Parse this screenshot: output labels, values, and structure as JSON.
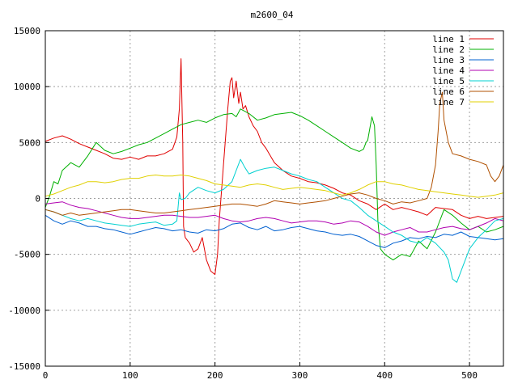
{
  "chart_data": {
    "type": "line",
    "title": "m2600_04",
    "xlabel": "",
    "ylabel": "",
    "xlim": [
      0,
      540
    ],
    "ylim": [
      -15000,
      15000
    ],
    "xticks": [
      0,
      100,
      200,
      300,
      400,
      500
    ],
    "yticks": [
      -15000,
      -10000,
      -5000,
      0,
      5000,
      10000,
      15000
    ],
    "grid": true,
    "legend_position": "top-right",
    "series": [
      {
        "name": "line 1",
        "color": "#e00000",
        "x": [
          0,
          10,
          20,
          30,
          40,
          50,
          60,
          70,
          80,
          90,
          100,
          110,
          120,
          130,
          140,
          150,
          155,
          158,
          160,
          162,
          163,
          165,
          170,
          175,
          180,
          185,
          190,
          195,
          200,
          203,
          205,
          210,
          215,
          218,
          220,
          222,
          225,
          228,
          230,
          233,
          236,
          240,
          245,
          250,
          255,
          260,
          270,
          280,
          290,
          300,
          310,
          320,
          330,
          340,
          350,
          360,
          370,
          380,
          390,
          400,
          410,
          420,
          430,
          440,
          450,
          460,
          470,
          480,
          490,
          500,
          510,
          520,
          530,
          540
        ],
        "y": [
          5100,
          5400,
          5600,
          5300,
          4900,
          4600,
          4300,
          4000,
          3600,
          3500,
          3700,
          3500,
          3800,
          3800,
          4000,
          4400,
          5500,
          8000,
          12500,
          5000,
          -2500,
          -3500,
          -4000,
          -4800,
          -4500,
          -3500,
          -5500,
          -6500,
          -6800,
          -5000,
          -2000,
          3000,
          8000,
          10500,
          10800,
          9000,
          10500,
          8500,
          9500,
          8000,
          8300,
          7300,
          6500,
          6000,
          5000,
          4500,
          3200,
          2500,
          2000,
          1800,
          1500,
          1400,
          1200,
          900,
          500,
          300,
          -200,
          -500,
          -1000,
          -500,
          -1000,
          -800,
          -1000,
          -1200,
          -1500,
          -800,
          -900,
          -1000,
          -1500,
          -1800,
          -1600,
          -1800,
          -1700,
          -1600
        ]
      },
      {
        "name": "line 2",
        "color": "#00b000",
        "x": [
          0,
          5,
          10,
          15,
          20,
          30,
          40,
          50,
          60,
          70,
          80,
          90,
          100,
          110,
          120,
          130,
          140,
          150,
          160,
          170,
          180,
          190,
          200,
          210,
          220,
          225,
          230,
          240,
          250,
          260,
          270,
          280,
          290,
          300,
          310,
          320,
          330,
          340,
          350,
          360,
          370,
          375,
          378,
          380,
          385,
          388,
          390,
          392,
          395,
          400,
          410,
          420,
          430,
          440,
          450,
          460,
          470,
          480,
          490,
          500,
          510,
          520,
          530,
          540
        ],
        "y": [
          -800,
          200,
          1500,
          1300,
          2500,
          3200,
          2800,
          3800,
          5000,
          4300,
          4000,
          4200,
          4500,
          4800,
          5000,
          5400,
          5800,
          6200,
          6600,
          6800,
          7000,
          6800,
          7200,
          7500,
          7600,
          7300,
          8000,
          7600,
          7000,
          7200,
          7500,
          7600,
          7700,
          7400,
          7000,
          6500,
          6000,
          5500,
          5000,
          4500,
          4200,
          4400,
          5000,
          5200,
          7300,
          6500,
          3000,
          -2000,
          -4500,
          -5000,
          -5500,
          -5000,
          -5200,
          -3800,
          -4500,
          -3000,
          -1000,
          -1500,
          -2200,
          -2800,
          -2500,
          -3000,
          -2800,
          -2500
        ]
      },
      {
        "name": "line 3",
        "color": "#0060d0",
        "x": [
          0,
          10,
          20,
          30,
          40,
          50,
          60,
          70,
          80,
          90,
          100,
          110,
          120,
          130,
          140,
          150,
          160,
          170,
          180,
          190,
          200,
          210,
          220,
          230,
          240,
          250,
          260,
          270,
          280,
          290,
          300,
          310,
          320,
          330,
          340,
          350,
          360,
          370,
          380,
          390,
          400,
          410,
          420,
          430,
          440,
          450,
          460,
          470,
          480,
          490,
          500,
          510,
          520,
          530,
          540
        ],
        "y": [
          -1500,
          -2000,
          -2300,
          -2000,
          -2200,
          -2500,
          -2500,
          -2700,
          -2800,
          -3000,
          -3200,
          -3000,
          -2800,
          -2600,
          -2700,
          -2900,
          -2800,
          -3000,
          -3100,
          -2800,
          -2900,
          -2700,
          -2300,
          -2200,
          -2600,
          -2800,
          -2500,
          -2900,
          -2800,
          -2600,
          -2500,
          -2700,
          -2900,
          -3000,
          -3200,
          -3300,
          -3200,
          -3400,
          -3800,
          -4200,
          -4400,
          -4000,
          -3800,
          -3500,
          -3600,
          -3400,
          -3500,
          -3200,
          -3300,
          -3000,
          -3400,
          -3500,
          -3600,
          -3700,
          -3600
        ]
      },
      {
        "name": "line 4",
        "color": "#b000b0",
        "x": [
          0,
          10,
          20,
          30,
          40,
          50,
          60,
          70,
          80,
          90,
          100,
          110,
          120,
          130,
          140,
          150,
          160,
          170,
          180,
          190,
          200,
          210,
          220,
          230,
          240,
          250,
          260,
          270,
          280,
          290,
          300,
          310,
          320,
          330,
          340,
          350,
          360,
          370,
          380,
          390,
          400,
          410,
          420,
          430,
          440,
          450,
          460,
          470,
          480,
          490,
          500,
          510,
          520,
          530,
          540
        ],
        "y": [
          -500,
          -400,
          -300,
          -600,
          -800,
          -900,
          -1100,
          -1300,
          -1500,
          -1700,
          -1800,
          -1800,
          -1700,
          -1600,
          -1500,
          -1500,
          -1600,
          -1700,
          -1700,
          -1600,
          -1500,
          -1800,
          -2000,
          -2100,
          -2000,
          -1800,
          -1700,
          -1800,
          -2000,
          -2200,
          -2100,
          -2000,
          -2000,
          -2100,
          -2300,
          -2200,
          -2000,
          -2100,
          -2500,
          -3000,
          -3300,
          -3000,
          -2800,
          -2600,
          -3000,
          -3000,
          -2800,
          -2600,
          -2500,
          -2700,
          -2800,
          -2500,
          -2200,
          -1800,
          -2000
        ]
      },
      {
        "name": "line 5",
        "color": "#00d0d0",
        "x": [
          0,
          10,
          20,
          30,
          40,
          50,
          60,
          70,
          80,
          90,
          100,
          110,
          120,
          130,
          140,
          150,
          155,
          158,
          160,
          165,
          170,
          180,
          190,
          200,
          210,
          220,
          225,
          230,
          235,
          240,
          250,
          260,
          270,
          280,
          290,
          300,
          310,
          320,
          330,
          340,
          350,
          360,
          370,
          380,
          390,
          400,
          410,
          420,
          430,
          440,
          450,
          460,
          470,
          475,
          480,
          485,
          490,
          500,
          510,
          520,
          530,
          540
        ],
        "y": [
          -1000,
          -1200,
          -1500,
          -1800,
          -2000,
          -1800,
          -2000,
          -2200,
          -2300,
          -2400,
          -2500,
          -2300,
          -2200,
          -2100,
          -2400,
          -2300,
          -2000,
          500,
          -100,
          0,
          500,
          1000,
          700,
          500,
          800,
          1500,
          2500,
          3500,
          2800,
          2200,
          2500,
          2700,
          2800,
          2500,
          2200,
          2000,
          1700,
          1500,
          1000,
          500,
          0,
          -200,
          -800,
          -1500,
          -2000,
          -2500,
          -3000,
          -3300,
          -3800,
          -4000,
          -3500,
          -4000,
          -4800,
          -5500,
          -7200,
          -7500,
          -6500,
          -4500,
          -3500,
          -2800,
          -2000,
          -1800
        ]
      },
      {
        "name": "line 6",
        "color": "#b05000",
        "x": [
          0,
          10,
          20,
          30,
          40,
          50,
          60,
          70,
          80,
          90,
          100,
          110,
          120,
          130,
          140,
          150,
          160,
          170,
          180,
          190,
          200,
          210,
          220,
          230,
          240,
          250,
          260,
          270,
          280,
          290,
          300,
          310,
          320,
          330,
          340,
          350,
          360,
          370,
          380,
          390,
          400,
          410,
          420,
          430,
          440,
          450,
          455,
          460,
          463,
          465,
          468,
          470,
          475,
          480,
          490,
          500,
          510,
          520,
          525,
          530,
          535,
          540
        ],
        "y": [
          -1000,
          -1200,
          -1500,
          -1300,
          -1500,
          -1400,
          -1300,
          -1200,
          -1100,
          -1000,
          -1000,
          -1100,
          -1200,
          -1300,
          -1300,
          -1200,
          -1100,
          -1000,
          -900,
          -800,
          -700,
          -600,
          -500,
          -500,
          -600,
          -700,
          -500,
          -200,
          -300,
          -400,
          -500,
          -400,
          -300,
          -200,
          0,
          200,
          400,
          500,
          300,
          0,
          -200,
          -500,
          -300,
          -400,
          -200,
          0,
          1000,
          3000,
          6000,
          8500,
          9500,
          7000,
          5000,
          4000,
          3800,
          3500,
          3300,
          3000,
          2000,
          1500,
          2000,
          3000
        ]
      },
      {
        "name": "line 7",
        "color": "#e0d000",
        "x": [
          0,
          10,
          20,
          30,
          40,
          50,
          60,
          70,
          80,
          90,
          100,
          110,
          120,
          130,
          140,
          150,
          160,
          170,
          180,
          190,
          200,
          210,
          220,
          230,
          240,
          250,
          260,
          270,
          280,
          290,
          300,
          310,
          320,
          330,
          340,
          350,
          360,
          370,
          380,
          390,
          400,
          410,
          420,
          430,
          440,
          450,
          460,
          470,
          480,
          490,
          500,
          510,
          520,
          530,
          540
        ],
        "y": [
          200,
          400,
          700,
          1000,
          1200,
          1500,
          1500,
          1400,
          1500,
          1700,
          1800,
          1800,
          2000,
          2100,
          2000,
          2000,
          2100,
          2000,
          1800,
          1600,
          1300,
          1200,
          1100,
          1000,
          1200,
          1300,
          1200,
          1000,
          800,
          900,
          1000,
          900,
          800,
          700,
          500,
          300,
          500,
          800,
          1200,
          1500,
          1500,
          1300,
          1200,
          1000,
          800,
          700,
          600,
          500,
          400,
          300,
          200,
          100,
          200,
          300,
          500
        ]
      }
    ]
  }
}
